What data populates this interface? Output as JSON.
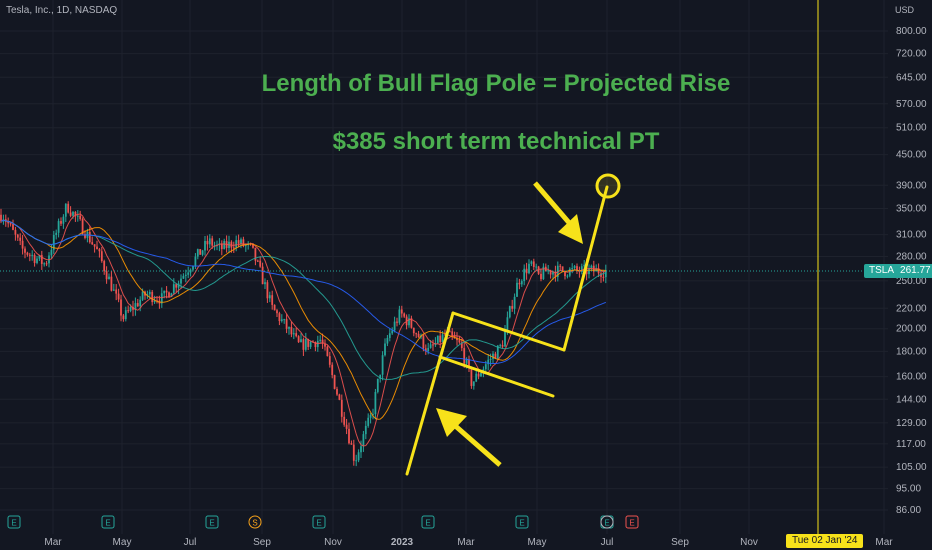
{
  "header": {
    "symbol_info": "Tesla, Inc., 1D, NASDAQ",
    "currency": "USD"
  },
  "annotations": {
    "line1": "Length of Bull Flag Pole = Projected Rise",
    "line2": "$385 short term technical PT"
  },
  "last_price": {
    "ticker": "TSLA",
    "value": "261.77"
  },
  "cursor_date": "Tue 02 Jan '24",
  "colors": {
    "background": "#131722",
    "up": "#26a69a",
    "down": "#ef5350",
    "annotation": "#f7e21a",
    "text": "#4caf50"
  },
  "chart_data": {
    "type": "candlestick",
    "title": "",
    "y_ticks": [
      86,
      95,
      105,
      117,
      129,
      144,
      160,
      180,
      200,
      220,
      250,
      280,
      310,
      350,
      390,
      450,
      510,
      570,
      645,
      720,
      800
    ],
    "y_scale": "log",
    "x_ticks": [
      "Mar",
      "May",
      "Jul",
      "Sep",
      "Nov",
      "2023",
      "Mar",
      "May",
      "Jul",
      "Sep",
      "Nov",
      "Mar"
    ],
    "price_path": [
      [
        "2022-01-28",
        340
      ],
      [
        "2022-02-15",
        290
      ],
      [
        "2022-03-10",
        270
      ],
      [
        "2022-03-31",
        355
      ],
      [
        "2022-04-15",
        320
      ],
      [
        "2022-04-28",
        290
      ],
      [
        "2022-05-24",
        210
      ],
      [
        "2022-06-15",
        235
      ],
      [
        "2022-07-01",
        230
      ],
      [
        "2022-07-20",
        255
      ],
      [
        "2022-08-15",
        300
      ],
      [
        "2022-08-26",
        290
      ],
      [
        "2022-09-10",
        300
      ],
      [
        "2022-09-25",
        290
      ],
      [
        "2022-10-15",
        220
      ],
      [
        "2022-11-10",
        185
      ],
      [
        "2022-12-01",
        190
      ],
      [
        "2022-12-20",
        140
      ],
      [
        "2023-01-03",
        108
      ],
      [
        "2023-01-20",
        135
      ],
      [
        "2023-02-03",
        190
      ],
      [
        "2023-02-16",
        215
      ],
      [
        "2023-03-01",
        200
      ],
      [
        "2023-03-15",
        180
      ],
      [
        "2023-04-01",
        195
      ],
      [
        "2023-04-15",
        185
      ],
      [
        "2023-04-26",
        155
      ],
      [
        "2023-05-10",
        170
      ],
      [
        "2023-05-25",
        185
      ],
      [
        "2023-06-10",
        250
      ],
      [
        "2023-06-21",
        270
      ],
      [
        "2023-06-30",
        255
      ],
      [
        "2023-07-07",
        262
      ]
    ],
    "moving_averages": [
      {
        "color": "#ef5350",
        "period_order": 1
      },
      {
        "color": "#ff9800",
        "period_order": 2
      },
      {
        "color": "#26a69a",
        "period_order": 3
      },
      {
        "color": "#2962ff",
        "period_order": 4
      }
    ],
    "earnings_markers": [
      "E",
      "E",
      "E",
      "S",
      "E",
      "E",
      "E",
      "E"
    ],
    "target_price": 385
  }
}
